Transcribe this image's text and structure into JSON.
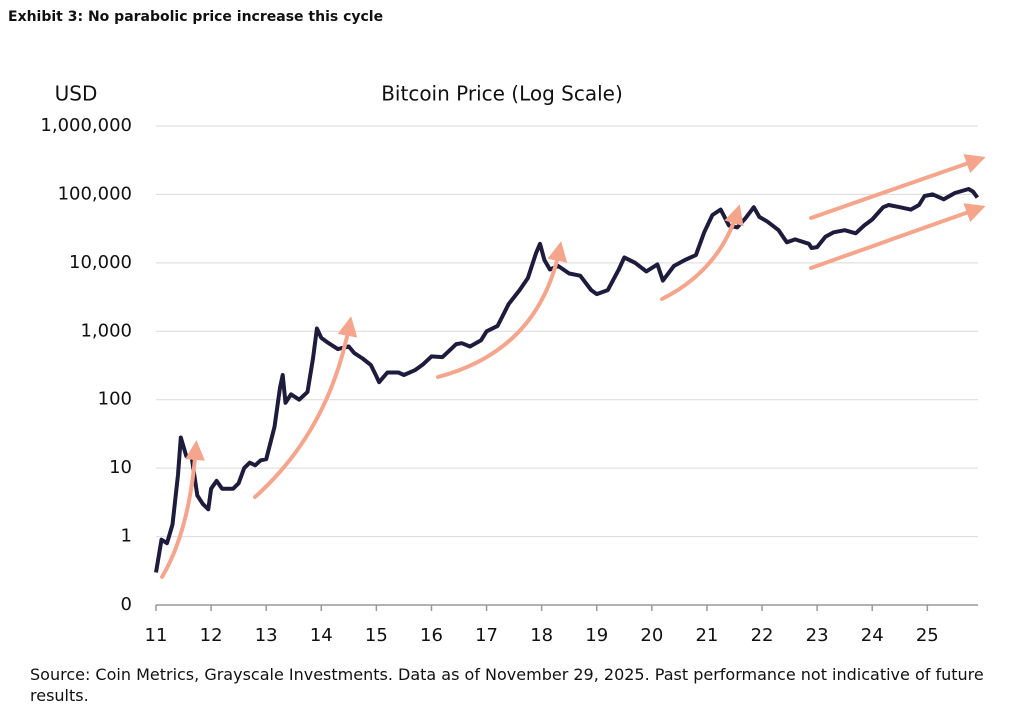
{
  "chart_data": {
    "type": "line",
    "header": "Exhibit 3: No parabolic price increase this cycle",
    "title": "Bitcoin Price (Log Scale)",
    "ylabel": "USD",
    "note": "Source: Coin Metrics, Grayscale Investments. Data as of November 29, 2025. Past performance not indicative of future results.",
    "color": "#1f1b3d",
    "log_y": true,
    "grid": true,
    "x": [
      11.0,
      11.1,
      11.2,
      11.3,
      11.4,
      11.45,
      11.55,
      11.65,
      11.75,
      11.85,
      11.95,
      12.0,
      12.1,
      12.2,
      12.4,
      12.5,
      12.6,
      12.7,
      12.8,
      12.9,
      13.0,
      13.15,
      13.25,
      13.3,
      13.35,
      13.45,
      13.6,
      13.75,
      13.85,
      13.92,
      14.0,
      14.1,
      14.3,
      14.5,
      14.6,
      14.75,
      14.9,
      15.0,
      15.05,
      15.2,
      15.4,
      15.5,
      15.7,
      15.85,
      16.0,
      16.2,
      16.45,
      16.55,
      16.7,
      16.9,
      17.0,
      17.2,
      17.4,
      17.6,
      17.75,
      17.9,
      17.97,
      18.05,
      18.15,
      18.3,
      18.5,
      18.7,
      18.9,
      19.0,
      19.2,
      19.4,
      19.5,
      19.7,
      19.9,
      20.1,
      20.2,
      20.4,
      20.6,
      20.8,
      20.95,
      21.1,
      21.25,
      21.4,
      21.55,
      21.7,
      21.85,
      21.95,
      22.1,
      22.3,
      22.45,
      22.6,
      22.85,
      22.9,
      23.0,
      23.15,
      23.3,
      23.5,
      23.7,
      23.85,
      24.0,
      24.2,
      24.3,
      24.5,
      24.7,
      24.85,
      24.95,
      25.1,
      25.3,
      25.5,
      25.75,
      25.83,
      25.91
    ],
    "values": [
      0.3,
      0.9,
      0.8,
      1.5,
      8,
      28,
      15,
      14,
      4,
      3,
      2.5,
      5,
      6.5,
      5,
      5,
      6,
      10,
      12,
      11,
      13,
      13.5,
      40,
      150,
      230,
      90,
      120,
      100,
      130,
      400,
      1100,
      800,
      700,
      550,
      600,
      480,
      400,
      320,
      220,
      180,
      250,
      250,
      230,
      270,
      330,
      430,
      420,
      650,
      670,
      600,
      740,
      1000,
      1200,
      2500,
      4000,
      6000,
      14000,
      19000,
      11000,
      8000,
      9000,
      7000,
      6500,
      4000,
      3500,
      4000,
      8000,
      12000,
      10000,
      7500,
      9500,
      5500,
      9000,
      11000,
      13000,
      28000,
      50000,
      60000,
      35000,
      33000,
      45000,
      65000,
      47000,
      40000,
      30000,
      20000,
      22000,
      19000,
      16500,
      17000,
      24000,
      28000,
      30000,
      27000,
      35000,
      43000,
      65000,
      70000,
      65000,
      60000,
      70000,
      95000,
      100000,
      85000,
      105000,
      120000,
      110000,
      90000
    ],
    "xlim": [
      11,
      25.92
    ],
    "xticks": [
      11,
      12,
      13,
      14,
      15,
      16,
      17,
      18,
      19,
      20,
      21,
      22,
      23,
      24,
      25
    ],
    "ylim": [
      0.1,
      1000000
    ],
    "yticks": [
      {
        "value": 0.1,
        "label": "0"
      },
      1,
      10,
      100,
      {
        "value": 1000,
        "label": "1,000"
      },
      {
        "value": 10000,
        "label": "10,000"
      },
      {
        "value": 100000,
        "label": "100,000"
      },
      {
        "value": 1000000,
        "label": "1,000,000"
      }
    ]
  }
}
